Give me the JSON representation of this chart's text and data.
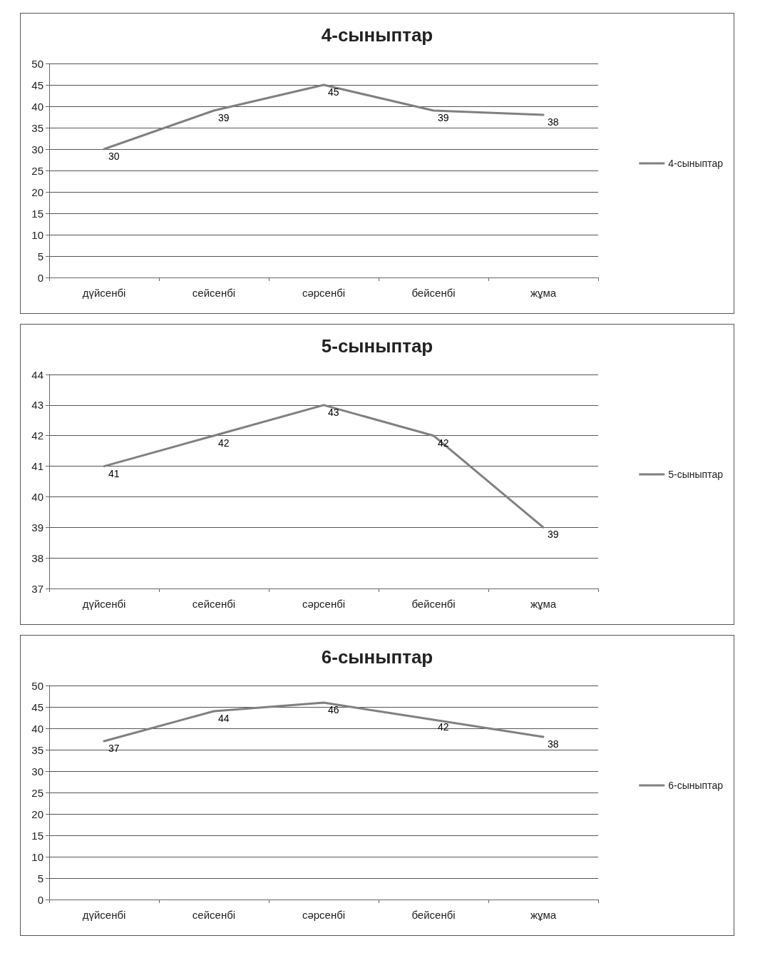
{
  "chart_data": [
    {
      "type": "line",
      "title": "4-сыныптар",
      "categories": [
        "дүйсенбі",
        "сейсенбі",
        "сәрсенбі",
        "бейсенбі",
        "жұма"
      ],
      "series": [
        {
          "name": "4-сыныптар",
          "color": "#808080",
          "values": [
            30,
            39,
            45,
            39,
            38
          ]
        }
      ],
      "ylim": [
        0,
        50
      ],
      "yticks": [
        0,
        5,
        10,
        15,
        20,
        25,
        30,
        35,
        40,
        45,
        50
      ],
      "grid": "y",
      "legend": "right",
      "marker": "none",
      "data_labels": true
    },
    {
      "type": "line",
      "title": "5-сыныптар",
      "categories": [
        "дүйсенбі",
        "сейсенбі",
        "сәрсенбі",
        "бейсенбі",
        "жұма"
      ],
      "series": [
        {
          "name": "5-сыныптар",
          "color": "#808080",
          "values": [
            41,
            42,
            43,
            42,
            39
          ]
        }
      ],
      "ylim": [
        37,
        44
      ],
      "yticks": [
        37,
        38,
        39,
        40,
        41,
        42,
        43,
        44
      ],
      "grid": "y",
      "legend": "right",
      "marker": "none",
      "data_labels": true
    },
    {
      "type": "line",
      "title": "6-сыныптар",
      "categories": [
        "дүйсенбі",
        "сейсенбі",
        "сәрсенбі",
        "бейсенбі",
        "жұма"
      ],
      "series": [
        {
          "name": "6-сыныптар",
          "color": "#808080",
          "values": [
            37,
            44,
            46,
            42,
            38
          ]
        }
      ],
      "ylim": [
        0,
        50
      ],
      "yticks": [
        0,
        5,
        10,
        15,
        20,
        25,
        30,
        35,
        40,
        45,
        50
      ],
      "grid": "y",
      "legend": "right",
      "marker": "none",
      "data_labels": true
    }
  ]
}
